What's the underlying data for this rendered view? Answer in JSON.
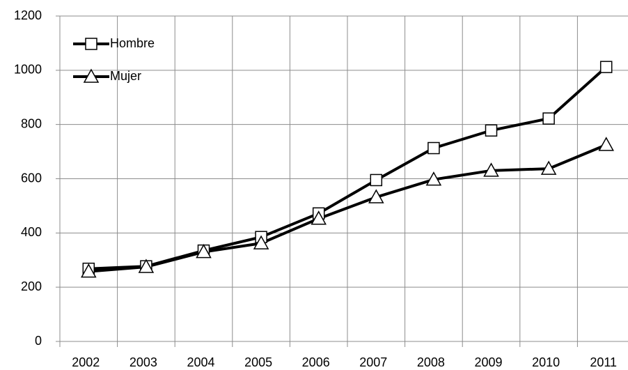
{
  "chart_data": {
    "type": "line",
    "categories": [
      "2002",
      "2003",
      "2004",
      "2005",
      "2006",
      "2007",
      "2008",
      "2009",
      "2010",
      "2011"
    ],
    "series": [
      {
        "name": "Hombre",
        "color": "#000000",
        "marker": "square",
        "values": [
          268,
          277,
          335,
          385,
          472,
          595,
          713,
          778,
          822,
          1012
        ]
      },
      {
        "name": "Mujer",
        "color": "#000000",
        "marker": "triangle",
        "values": [
          258,
          275,
          330,
          362,
          453,
          532,
          597,
          630,
          637,
          725
        ]
      }
    ],
    "ylim": [
      0,
      1200
    ],
    "yticks": [
      0,
      200,
      400,
      600,
      800,
      1000,
      1200
    ],
    "grid": true,
    "legend": "top-left"
  }
}
